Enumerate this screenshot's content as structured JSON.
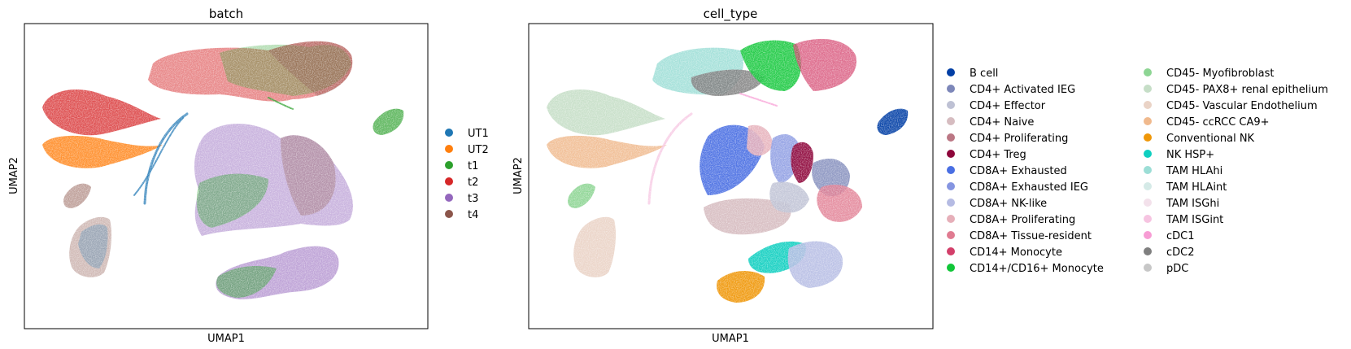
{
  "chart_data": [
    {
      "type": "scatter",
      "title": "batch",
      "xlabel": "UMAP1",
      "ylabel": "UMAP2",
      "grid": false,
      "legend_position": "right",
      "legend": [
        {
          "name": "UT1",
          "color": "#1f77b4"
        },
        {
          "name": "UT2",
          "color": "#ff7f0e"
        },
        {
          "name": "t1",
          "color": "#2ca02c"
        },
        {
          "name": "t2",
          "color": "#d62728"
        },
        {
          "name": "t3",
          "color": "#9467bd"
        },
        {
          "name": "t4",
          "color": "#8c564b"
        }
      ]
    },
    {
      "type": "scatter",
      "title": "cell_type",
      "xlabel": "UMAP1",
      "ylabel": "UMAP2",
      "grid": false,
      "legend_position": "right",
      "legend": [
        {
          "name": "B cell",
          "color": "#023fa5"
        },
        {
          "name": "CD4+ Activated IEG",
          "color": "#7d87b9"
        },
        {
          "name": "CD4+ Effector",
          "color": "#bec1d4"
        },
        {
          "name": "CD4+ Naive",
          "color": "#d6bcc0"
        },
        {
          "name": "CD4+ Proliferating",
          "color": "#bb7784"
        },
        {
          "name": "CD4+ Treg",
          "color": "#8e063b"
        },
        {
          "name": "CD8A+ Exhausted",
          "color": "#4a6fe3"
        },
        {
          "name": "CD8A+ Exhausted IEG",
          "color": "#8595e1"
        },
        {
          "name": "CD8A+ NK-like",
          "color": "#b5bbe3"
        },
        {
          "name": "CD8A+ Proliferating",
          "color": "#e6afb9"
        },
        {
          "name": "CD8A+ Tissue-resident",
          "color": "#e07b91"
        },
        {
          "name": "CD14+ Monocyte",
          "color": "#d33f6a"
        },
        {
          "name": "CD14+/CD16+ Monocyte",
          "color": "#11c638"
        },
        {
          "name": "CD45- Myofibroblast",
          "color": "#8dd593"
        },
        {
          "name": "CD45- PAX8+ renal epithelium",
          "color": "#c6dec7"
        },
        {
          "name": "CD45- Vascular Endothelium",
          "color": "#ead3c6"
        },
        {
          "name": "CD45- ccRCC CA9+",
          "color": "#f0b98d"
        },
        {
          "name": "Conventional NK",
          "color": "#ef9708"
        },
        {
          "name": "NK HSP+",
          "color": "#0fcfc0"
        },
        {
          "name": "TAM HLAhi",
          "color": "#9cded6"
        },
        {
          "name": "TAM HLAint",
          "color": "#d5eae7"
        },
        {
          "name": "TAM ISGhi",
          "color": "#f3e1eb"
        },
        {
          "name": "TAM ISGint",
          "color": "#f6c4e1"
        },
        {
          "name": "cDC1",
          "color": "#f79cd4"
        },
        {
          "name": "cDC2",
          "color": "#7f7f7f"
        },
        {
          "name": "pDC",
          "color": "#c7c7c7"
        }
      ]
    }
  ]
}
